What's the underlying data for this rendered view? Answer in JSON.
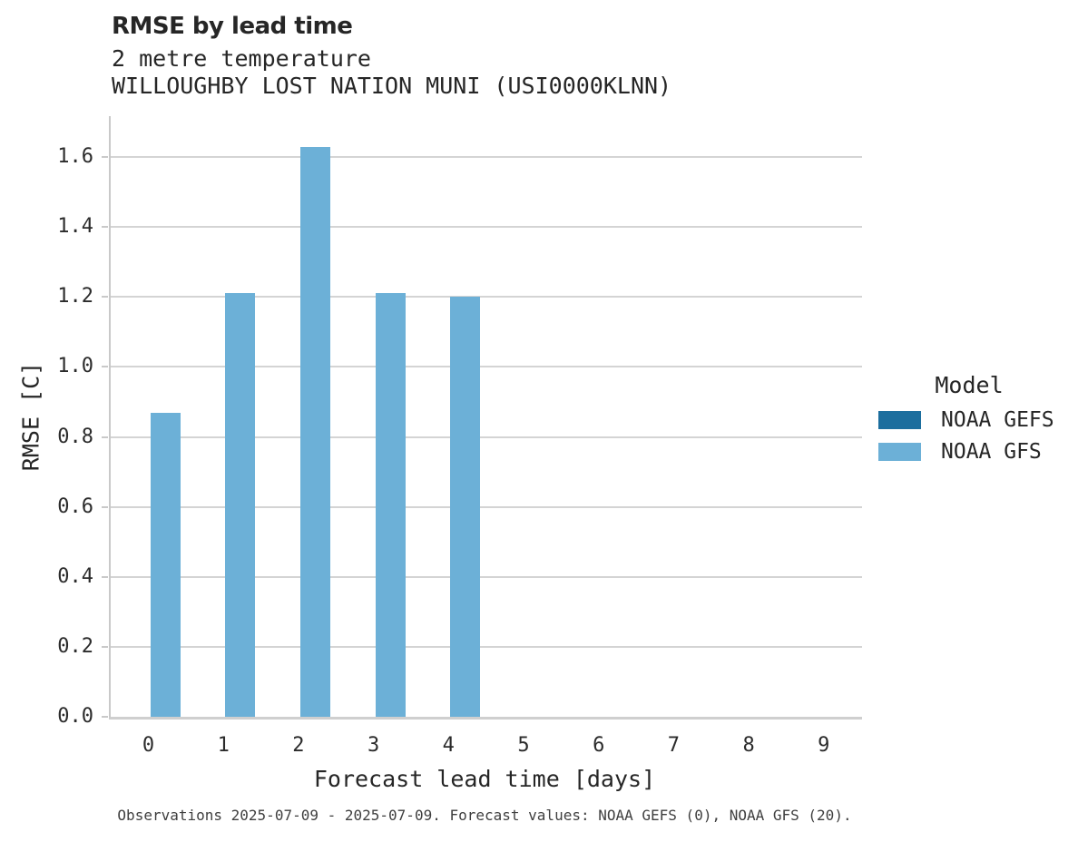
{
  "header": {
    "title": "RMSE by lead time",
    "subtitle_1": "2 metre temperature",
    "subtitle_2": "WILLOUGHBY LOST NATION MUNI (USI0000KLNN)"
  },
  "chart_data": {
    "type": "bar",
    "title": "RMSE by lead time",
    "subtitle": [
      "2 metre temperature",
      "WILLOUGHBY LOST NATION MUNI (USI0000KLNN)"
    ],
    "categories": [
      0,
      1,
      2,
      3,
      4,
      5,
      6,
      7,
      8,
      9
    ],
    "series": [
      {
        "name": "NOAA GEFS",
        "color": "#1c6e9e",
        "values": [
          null,
          null,
          null,
          null,
          null,
          null,
          null,
          null,
          null,
          null
        ]
      },
      {
        "name": "NOAA GFS",
        "color": "#6cb0d7",
        "values": [
          0.87,
          1.21,
          1.63,
          1.21,
          1.2,
          null,
          null,
          null,
          null,
          null
        ]
      }
    ],
    "xlabel": "Forecast lead time [days]",
    "ylabel": "RMSE [C]",
    "ylim": [
      0,
      1.717
    ],
    "yticks": [
      0.0,
      0.2,
      0.4,
      0.6,
      0.8,
      1.0,
      1.2,
      1.4,
      1.6
    ],
    "grid": "horizontal",
    "legend_position": "right"
  },
  "legend": {
    "title": "Model",
    "entries": [
      {
        "label": "NOAA GEFS",
        "color": "#1c6e9e"
      },
      {
        "label": "NOAA GFS",
        "color": "#6cb0d7"
      }
    ]
  },
  "footer": {
    "caption": "Observations 2025-07-09 - 2025-07-09. Forecast values: NOAA GEFS (0), NOAA GFS (20)."
  },
  "colors": {
    "gridline": "#d4d4d4",
    "axis_spine": "#cfcfcf",
    "text": "#262626"
  }
}
